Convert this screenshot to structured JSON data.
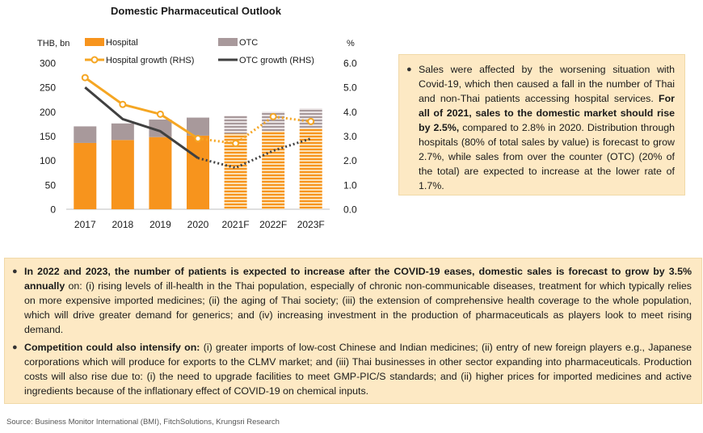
{
  "chart_data": {
    "type": "bar",
    "title": "Domestic Pharmaceutical Outlook",
    "categories": [
      "2017",
      "2018",
      "2019",
      "2020",
      "2021F",
      "2022F",
      "2023F"
    ],
    "forecast_from_index": 4,
    "y_left": {
      "unit": "THB, bn",
      "min": 0,
      "max": 300,
      "ticks": [
        "0",
        "50",
        "100",
        "150",
        "200",
        "250",
        "300"
      ]
    },
    "y_right": {
      "unit": "%",
      "min": 0,
      "max": 6,
      "ticks": [
        "0.0",
        "1.0",
        "2.0",
        "3.0",
        "4.0",
        "5.0",
        "6.0"
      ]
    },
    "stacked_bars": [
      {
        "name": "Hospital",
        "color": "#f7941d",
        "values": [
          136,
          142,
          148,
          151,
          155,
          160,
          166
        ]
      },
      {
        "name": "OTC",
        "color": "#a8999b",
        "values": [
          34,
          34,
          36,
          37,
          37,
          40,
          41
        ]
      }
    ],
    "lines": [
      {
        "name": "Hospital growth (RHS)",
        "color": "#f5a623",
        "marker": "circle",
        "values": [
          5.4,
          4.3,
          3.9,
          2.9,
          2.7,
          3.8,
          3.6
        ]
      },
      {
        "name": "OTC growth (RHS)",
        "color": "#404040",
        "marker": "none",
        "values": [
          5.0,
          3.7,
          3.2,
          2.1,
          1.7,
          2.4,
          2.9
        ]
      }
    ],
    "grid": false,
    "legend_position": "top"
  },
  "box1": {
    "normal1": "Sales were affected by the worsening situation with Covid-19, which then caused a fall in the number of Thai and non-Thai patients accessing hospital services. ",
    "bold1": "For all of 2021, sales to the domestic market should rise by 2.5%,",
    "normal2": " compared to 2.8% in 2020. Distribution through hospitals (80% of total sales by value) is forecast to grow 2.7%, while sales from over the counter (OTC) (20% of the total) are expected to increase at the lower rate of 1.7%."
  },
  "box2": {
    "p1_bold": "In 2022 and 2023, the number of patients is expected to increase after the COVID-19 eases, domestic sales is forecast to grow by 3.5% annually",
    "p1_text": " on: (i) rising levels of ill-health in the Thai population, especially of chronic non-communicable diseases, treatment for which typically relies on more expensive imported medicines; (ii) the aging of Thai society; (iii) the extension of comprehensive health coverage to the whole population, which will drive greater demand for generics; and (iv) increasing investment in the production of pharmaceuticals as players look to meet rising demand.",
    "p2_bold": "Competition could also intensify on:",
    "p2_text": " (i) greater imports of low-cost Chinese and Indian medicines; (ii) entry of new foreign players e.g., Japanese corporations which will produce for exports to the CLMV market; and (iii) Thai businesses in other sector expanding into pharmaceuticals. Production costs will also rise due to: (i) the need to upgrade facilities to meet GMP-PIC/S standards; and (ii) higher prices for imported medicines and active ingredients because of the inflationary effect of COVID-19 on chemical inputs."
  },
  "bullet_char": "●",
  "source": "Source: Business Monitor International (BMI), FitchSolutions, Krungsri Research"
}
